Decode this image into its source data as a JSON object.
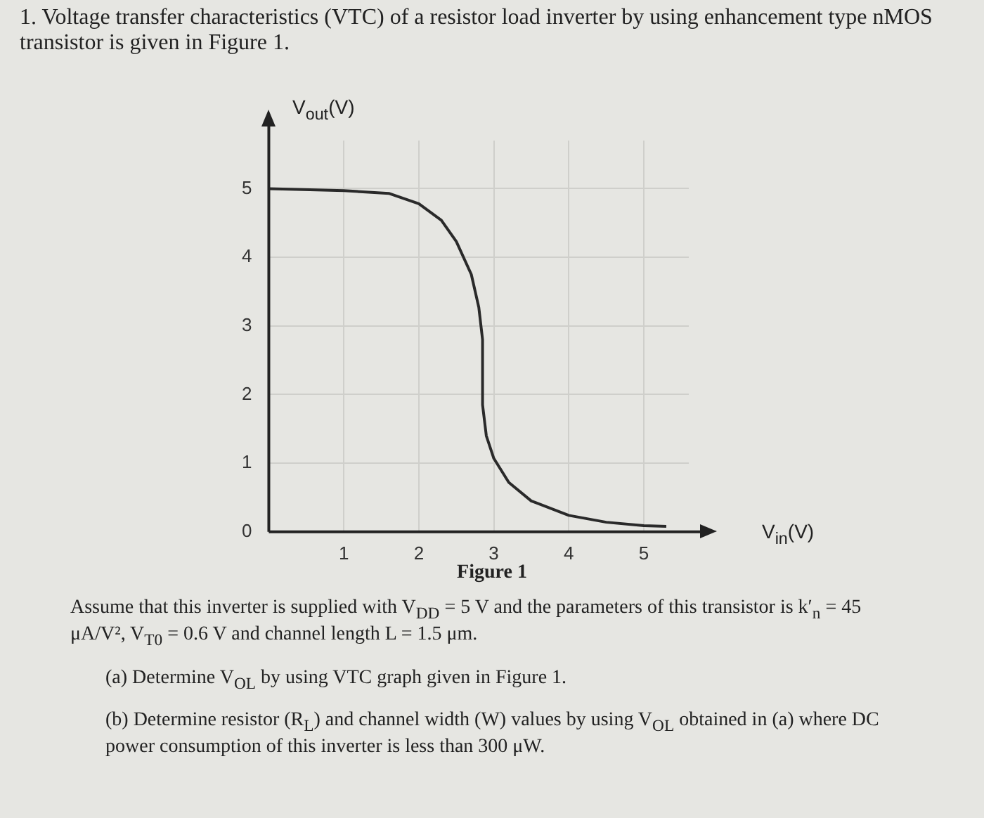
{
  "chart_data": {
    "type": "line",
    "title": "1. Voltage transfer characteristics (VTC) of a resistor load inverter by using enhancement type nMOS transistor is given in Figure 1.",
    "xlabel": "V$_{in}$(V)",
    "ylabel": "V$_{out}$(V)",
    "x": [
      0,
      1,
      1.6,
      2,
      2.3,
      2.5,
      2.7,
      2.8,
      2.85,
      2.85,
      2.9,
      3,
      3.2,
      3.5,
      4,
      4.5,
      5,
      5.3
    ],
    "series": [
      {
        "color": "#2a2a2a",
        "values": [
          5,
          4.97,
          4.93,
          4.78,
          4.54,
          4.23,
          3.75,
          3.27,
          2.8,
          1.85,
          1.4,
          1.07,
          0.72,
          0.45,
          0.24,
          0.14,
          0.09,
          0.08
        ]
      }
    ],
    "xlim": [
      0,
      5.6
    ],
    "ylim": [
      0,
      5.7
    ],
    "xticks": [
      {
        "value": 0,
        "label": null
      },
      1,
      2,
      3,
      4,
      5
    ],
    "yticks": [
      0,
      1,
      2,
      3,
      4,
      5
    ],
    "grid": true,
    "legend": false,
    "marker": "none",
    "line_style": "solid",
    "annotations": [
      "Figure 1",
      "Assume that this inverter is supplied with V$_{DD}$ = 5 V and the parameters of this transistor is k′$_{n}$ = 45 μA/V², V$_{T0}$ = 0.6 V and channel length L = 1.5 μm.",
      "(a) Determine V$_{OL}$ by using VTC graph given in Figure 1.",
      "(b) Determine resistor (R$_{L}$) and channel width (W) values by using V$_{OL}$ obtained in (a) where DC power consumption of this inverter is less than 300 μW."
    ]
  }
}
